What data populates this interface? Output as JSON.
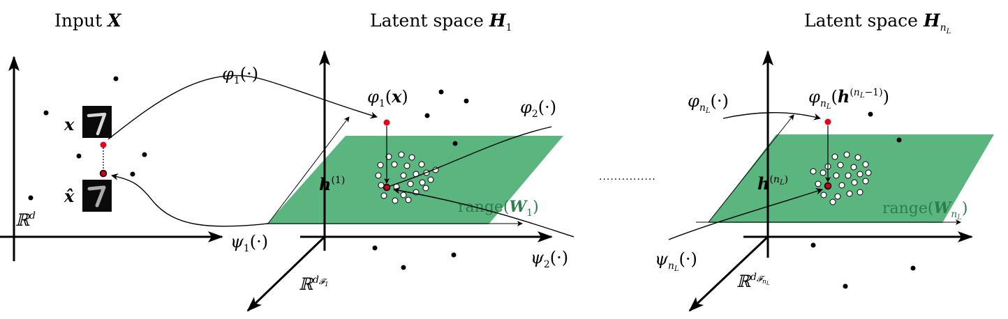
{
  "titles": {
    "input": "Input X",
    "latent_1": "Latent space H1",
    "latent_nl": "Latent space HnL"
  },
  "labels": {
    "x": "x",
    "x_hat": "x̂",
    "rd": "ℝd",
    "phi1": "φ1(·)",
    "phi1_x": "φ1(x)",
    "phi2": "φ2(·)",
    "psi1": "ψ1(·)",
    "psi2": "ψ2(·)",
    "h1": "h(1)",
    "range_w1": "range(W1)",
    "rdf1": "ℝdF1",
    "phinl": "φnL(·)",
    "phinl_h": "φnL(h(nL−1))",
    "hnl": "h(nL)",
    "range_wnl": "range(WnL)",
    "psinl": "ψnL(·)",
    "rdfnl": "ℝdFnL",
    "dots": "..............."
  },
  "colors": {
    "plane": "#5bb57f",
    "range_text": "#2e7d4f",
    "red_point": "#e3001b",
    "black": "#000000"
  },
  "icons": {
    "digit_image": "handwritten-seven-image",
    "reconstructed_image": "reconstructed-seven-image"
  }
}
